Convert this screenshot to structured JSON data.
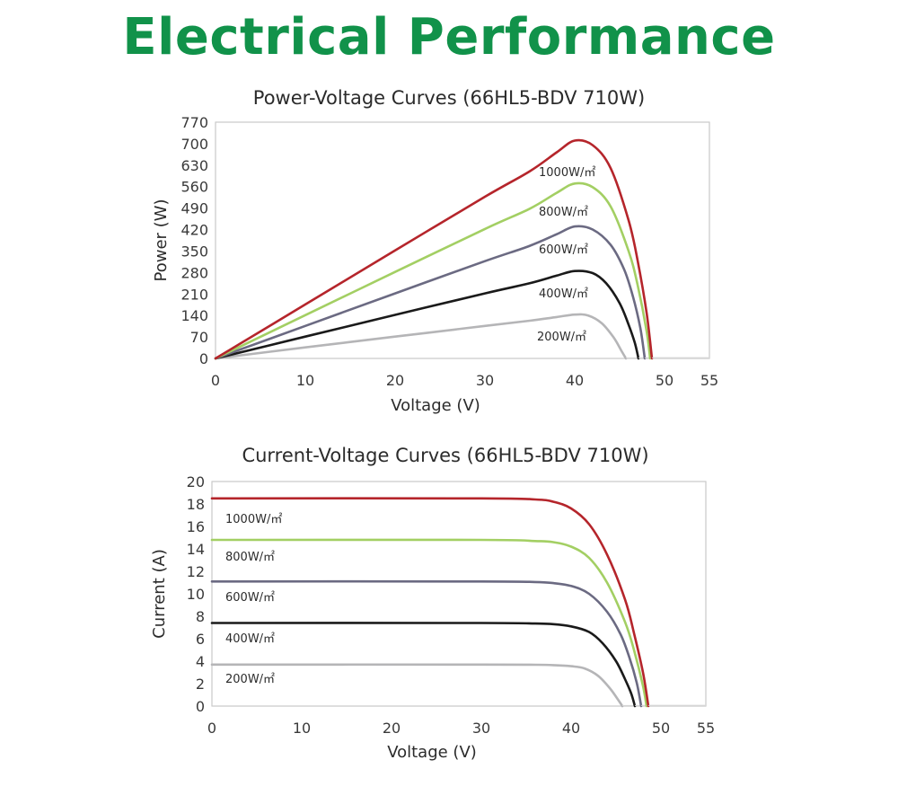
{
  "title": "Electrical Performance",
  "colors": {
    "title": "#11924a",
    "1000": "#b5252b",
    "800": "#a3cf63",
    "600": "#6b6a82",
    "400": "#1a1a1a",
    "200": "#b5b5b7"
  },
  "chart_data": [
    {
      "type": "line",
      "title": "Power-Voltage Curves (66HL5-BDV 710W)",
      "xlabel": "Voltage (V)",
      "ylabel": "Power (W)",
      "xlim": [
        0,
        55
      ],
      "ylim": [
        0,
        770
      ],
      "xticks": [
        "0",
        "10",
        "20",
        "30",
        "40",
        "50",
        "55"
      ],
      "yticks": [
        "0",
        "70",
        "140",
        "210",
        "280",
        "350",
        "420",
        "490",
        "560",
        "630",
        "700",
        "770"
      ],
      "grid": false,
      "series": [
        {
          "name": "1000W/㎡",
          "x": [
            0,
            10,
            20,
            30,
            35,
            38,
            40,
            42,
            44,
            46,
            47,
            48,
            48.6
          ],
          "y": [
            0,
            176,
            352,
            527,
            610,
            672,
            710,
            695,
            620,
            450,
            320,
            150,
            0
          ]
        },
        {
          "name": "800W/㎡",
          "x": [
            0,
            10,
            20,
            30,
            35,
            38,
            40,
            42,
            44,
            46,
            47,
            48,
            48.4
          ],
          "y": [
            0,
            141,
            282,
            422,
            488,
            540,
            570,
            558,
            495,
            350,
            240,
            90,
            0
          ]
        },
        {
          "name": "600W/㎡",
          "x": [
            0,
            10,
            20,
            30,
            35,
            38,
            40,
            42,
            44,
            45.5,
            46.5,
            47.3,
            47.8
          ],
          "y": [
            0,
            106,
            212,
            317,
            367,
            405,
            430,
            420,
            370,
            290,
            200,
            100,
            0
          ]
        },
        {
          "name": "400W/㎡",
          "x": [
            0,
            10,
            20,
            30,
            35,
            38,
            40,
            42,
            43.5,
            45,
            46,
            46.7,
            47.1
          ],
          "y": [
            0,
            71,
            142,
            212,
            245,
            270,
            285,
            278,
            245,
            180,
            110,
            50,
            0
          ]
        },
        {
          "name": "200W/㎡",
          "x": [
            0,
            10,
            20,
            30,
            35,
            38,
            40,
            41.5,
            43,
            44.3,
            45.2,
            45.7
          ],
          "y": [
            0,
            36,
            71,
            106,
            123,
            135,
            143,
            140,
            115,
            70,
            25,
            0
          ]
        }
      ]
    },
    {
      "type": "line",
      "title": "Current-Voltage Curves (66HL5-BDV 710W)",
      "xlabel": "Voltage (V)",
      "ylabel": "Current (A)",
      "xlim": [
        0,
        55
      ],
      "ylim": [
        0,
        20
      ],
      "xticks": [
        "0",
        "10",
        "20",
        "30",
        "40",
        "50",
        "55"
      ],
      "yticks": [
        "0",
        "2",
        "4",
        "6",
        "8",
        "10",
        "12",
        "14",
        "16",
        "18",
        "20"
      ],
      "grid": false,
      "series": [
        {
          "name": "1000W/㎡",
          "x": [
            0,
            30,
            36,
            38,
            40,
            42,
            44,
            46,
            47,
            48,
            48.6
          ],
          "y": [
            18.5,
            18.5,
            18.4,
            18.2,
            17.6,
            16.2,
            13.5,
            9.5,
            6.5,
            3.0,
            0
          ]
        },
        {
          "name": "800W/㎡",
          "x": [
            0,
            30,
            36,
            38,
            40,
            42,
            44,
            46,
            47,
            48,
            48.4
          ],
          "y": [
            14.8,
            14.8,
            14.7,
            14.6,
            14.2,
            13.2,
            11.0,
            7.5,
            5.0,
            1.8,
            0
          ]
        },
        {
          "name": "600W/㎡",
          "x": [
            0,
            30,
            36,
            38,
            40,
            42,
            44,
            45.5,
            46.5,
            47.3,
            47.8
          ],
          "y": [
            11.1,
            11.1,
            11.05,
            10.95,
            10.7,
            10.0,
            8.4,
            6.4,
            4.3,
            2.1,
            0
          ]
        },
        {
          "name": "400W/㎡",
          "x": [
            0,
            30,
            36,
            38,
            40,
            42,
            43.5,
            45,
            46,
            46.7,
            47.1
          ],
          "y": [
            7.4,
            7.4,
            7.35,
            7.3,
            7.1,
            6.6,
            5.6,
            4.0,
            2.4,
            1.1,
            0
          ]
        },
        {
          "name": "200W/㎡",
          "x": [
            0,
            30,
            36,
            38,
            40,
            41.5,
            43,
            44.3,
            45.2,
            45.7
          ],
          "y": [
            3.7,
            3.7,
            3.68,
            3.65,
            3.55,
            3.35,
            2.7,
            1.6,
            0.6,
            0
          ]
        }
      ]
    }
  ]
}
